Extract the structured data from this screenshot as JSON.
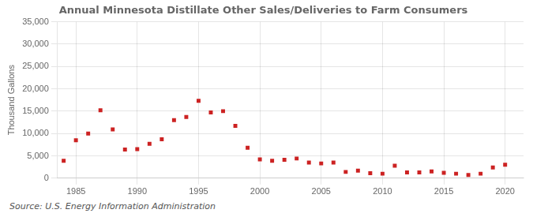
{
  "chart_data": {
    "type": "scatter",
    "title": "Annual Minnesota Distillate Other Sales/Deliveries to Farm Consumers",
    "y_label": "Thousand Gallons",
    "annotations": [
      "Source: U.S. Energy Information Administration"
    ],
    "x": [
      1984,
      1985,
      1986,
      1987,
      1988,
      1989,
      1990,
      1991,
      1992,
      1993,
      1994,
      1995,
      1996,
      1997,
      1998,
      1999,
      2000,
      2001,
      2002,
      2003,
      2004,
      2005,
      2006,
      2007,
      2008,
      2009,
      2010,
      2011,
      2012,
      2013,
      2014,
      2015,
      2016,
      2017,
      2018,
      2019,
      2020
    ],
    "values": [
      3900,
      8500,
      10000,
      15200,
      10900,
      6400,
      6500,
      7700,
      8700,
      13000,
      13700,
      17300,
      14700,
      15000,
      11700,
      6800,
      4200,
      3900,
      4100,
      4400,
      3500,
      3300,
      3500,
      1400,
      1700,
      1100,
      1000,
      2800,
      1300,
      1300,
      1500,
      1200,
      1000,
      700,
      1000,
      2400,
      3000
    ],
    "color": "#cc2222",
    "marker": "square",
    "xlim": [
      1983.5,
      2021.5
    ],
    "xticks": [
      1985,
      1990,
      1995,
      2000,
      2005,
      2010,
      2015,
      2020
    ],
    "ylim": [
      0,
      35000
    ],
    "yticks": [
      0,
      {
        "value": 5000,
        "label": "5,000"
      },
      {
        "value": 10000,
        "label": "10,000"
      },
      {
        "value": 15000,
        "label": "15,000"
      },
      {
        "value": 20000,
        "label": "20,000"
      },
      {
        "value": 25000,
        "label": "25,000"
      },
      {
        "value": 30000,
        "label": "30,000"
      },
      {
        "value": 35000,
        "label": "35,000"
      }
    ],
    "grid": true
  }
}
